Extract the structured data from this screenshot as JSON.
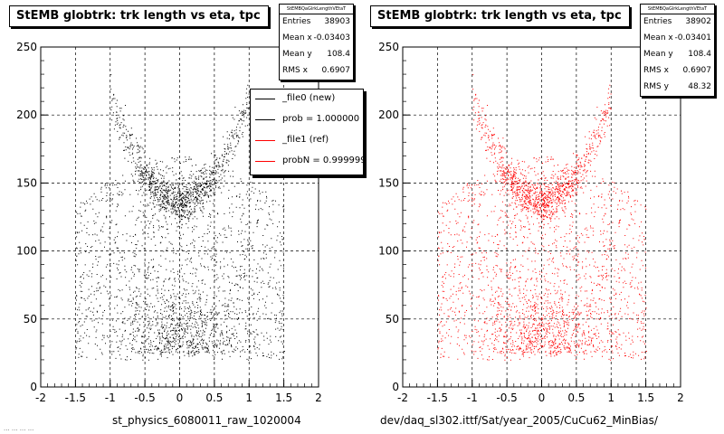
{
  "chart_data": [
    {
      "type": "scatter",
      "title": "StEMB globtrk: trk length vs eta, tpc",
      "xlabel": "st_physics_6080011_raw_1020004",
      "ylabel": "",
      "xlim": [
        -2,
        2
      ],
      "ylim": [
        0,
        250
      ],
      "xticks": [
        "-2",
        "-1.5",
        "-1",
        "-0.5",
        "0",
        "0.5",
        "1",
        "1.5",
        "2"
      ],
      "yticks": [
        "0",
        "50",
        "100",
        "150",
        "200",
        "250"
      ],
      "grid": true,
      "point_color": "#000000",
      "stats": {
        "name": "StEMBQaGlrkLengthVEtaT",
        "entries": "38903",
        "mean_x": "-0.03403",
        "mean_y": "108.4",
        "rms_x": "0.6907"
      },
      "legend": {
        "placement": "top-right",
        "entries": [
          {
            "label": "_file0 (new)",
            "color": "#000000"
          },
          {
            "label": "prob = 1.000000",
            "color": "#000000"
          },
          {
            "label": "_file1 (ref)",
            "color": "#ff0000"
          },
          {
            "label": "probN = 0.999999",
            "color": "#ff0000"
          }
        ]
      },
      "description": "2D scatter: U-shaped band (dense at eta~0, length~135-150; arms rise to ~200-230 at eta=±0.9), broad diffuse population 20-170 within |eta|<1.5, dense floor 20-50 near eta~0"
    },
    {
      "type": "scatter",
      "title": "StEMB globtrk: trk length vs eta, tpc",
      "xlabel": "dev/daq_sl302.ittf/Sat/year_2005/CuCu62_MinBias/",
      "ylabel": "",
      "xlim": [
        -2,
        2
      ],
      "ylim": [
        0,
        250
      ],
      "xticks": [
        "-2",
        "-1.5",
        "-1",
        "-0.5",
        "0",
        "0.5",
        "1",
        "1.5",
        "2"
      ],
      "yticks": [
        "0",
        "50",
        "100",
        "150",
        "200",
        "250"
      ],
      "grid": true,
      "point_color": "#ff0000",
      "stats": {
        "name": "StEMBQaGlrkLengthVEtaT",
        "entries": "38902",
        "mean_x": "-0.03401",
        "mean_y": "108.4",
        "rms_x": "0.6907",
        "rms_y": "48.32"
      }
    }
  ],
  "stats_labels": {
    "entries": "Entries",
    "mean_x": "Mean x",
    "mean_y": "Mean y",
    "rms_x": "RMS x",
    "rms_y": "RMS y"
  },
  "footer": "... ... ... ..."
}
